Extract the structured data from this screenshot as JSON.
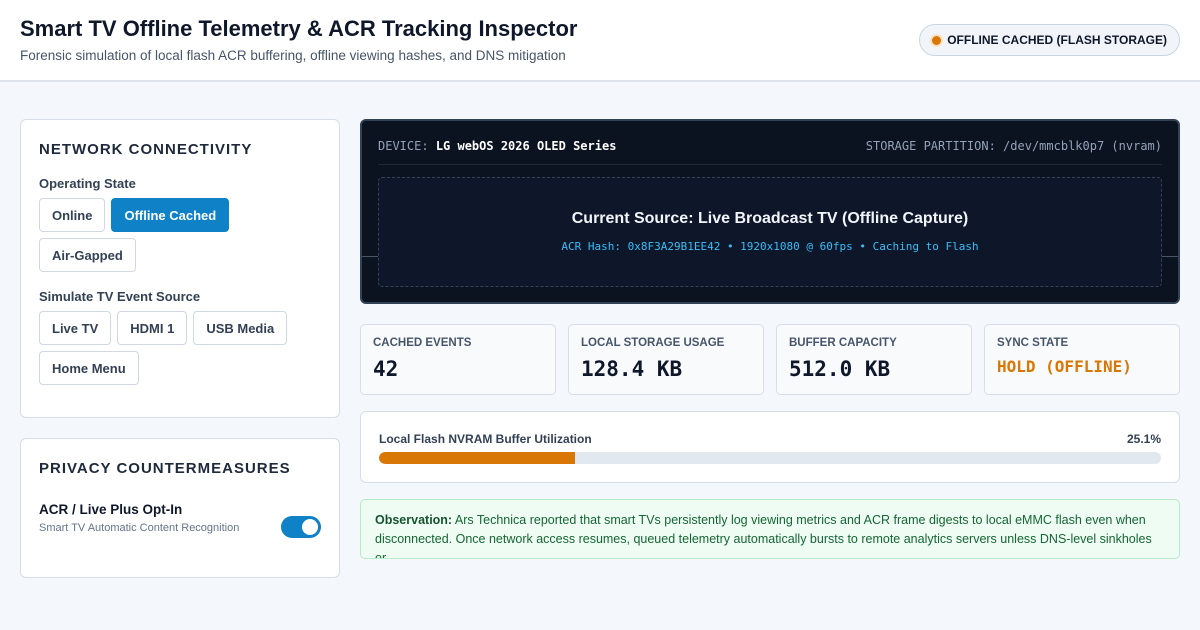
{
  "header": {
    "title": "Smart TV Offline Telemetry & ACR Tracking Inspector",
    "subtitle": "Forensic simulation of local flash ACR buffering, offline viewing hashes, and DNS mitigation",
    "status_label": "OFFLINE CACHED (FLASH STORAGE)",
    "status_color": "#d97706"
  },
  "network": {
    "heading": "NETWORK CONNECTIVITY",
    "operating_state_label": "Operating State",
    "states": [
      "Online",
      "Offline Cached",
      "Air-Gapped"
    ],
    "active_state": "Offline Cached",
    "event_source_label": "Simulate TV Event Source",
    "sources": [
      "Live TV",
      "HDMI 1",
      "USB Media",
      "Home Menu"
    ]
  },
  "privacy": {
    "heading": "PRIVACY COUNTERMEASURES",
    "acr_title": "ACR / Live Plus Opt-In",
    "acr_desc": "Smart TV Automatic Content Recognition",
    "acr_enabled": true
  },
  "screen": {
    "device_label": "DEVICE:",
    "device_value": "LG webOS 2026 OLED Series",
    "partition_label": "STORAGE PARTITION:",
    "partition_value": "/dev/mmcblk0p7 (nvram)",
    "source_title": "Current Source: Live Broadcast TV (Offline Capture)",
    "source_meta": "ACR Hash: 0x8F3A29B1EE42 • 1920x1080 @ 60fps • Caching to Flash"
  },
  "stats": [
    {
      "label": "CACHED EVENTS",
      "value": "42"
    },
    {
      "label": "LOCAL STORAGE USAGE",
      "value": "128.4 KB"
    },
    {
      "label": "BUFFER CAPACITY",
      "value": "512.0 KB"
    },
    {
      "label": "SYNC STATE",
      "value": "HOLD (OFFLINE)"
    }
  ],
  "buffer": {
    "label": "Local Flash NVRAM Buffer Utilization",
    "percent_text": "25.1%",
    "fraction": 0.251
  },
  "observation": {
    "lead": "Observation:",
    "text": "Ars Technica reported that smart TVs persistently log viewing metrics and ACR frame digests to local eMMC flash even when disconnected. Once network access resumes, queued telemetry automatically bursts to remote analytics servers unless DNS-level sinkholes or"
  },
  "colors": {
    "accent": "#0f82c7",
    "warning": "#d97706"
  }
}
